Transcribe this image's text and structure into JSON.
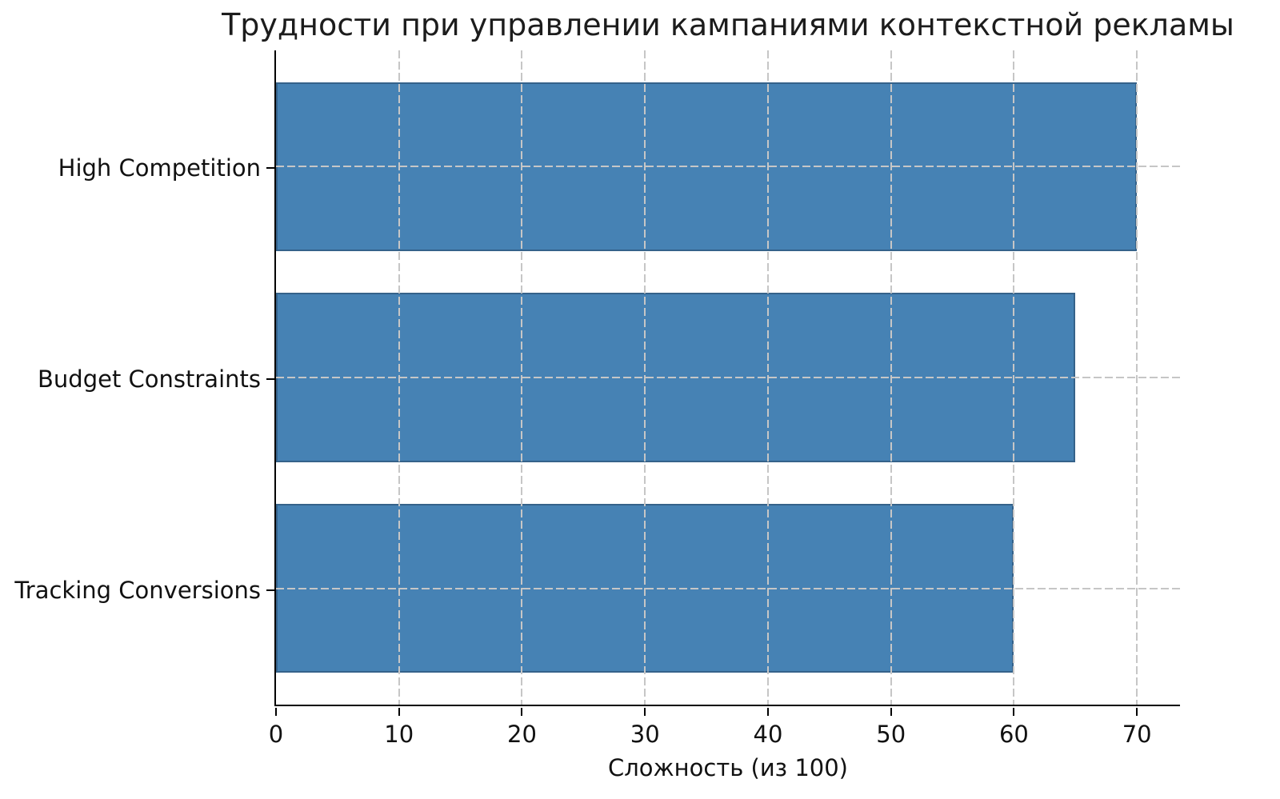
{
  "chart_data": {
    "type": "bar",
    "orientation": "horizontal",
    "title": "Трудности при управлении кампаниями контекстной рекламы",
    "xlabel": "Сложность (из 100)",
    "ylabel": "",
    "categories": [
      "High Competition",
      "Budget Constraints",
      "Tracking Conversions"
    ],
    "values": [
      70,
      65,
      60
    ],
    "xticks": [
      0,
      10,
      20,
      30,
      40,
      50,
      60,
      70
    ],
    "xlim": [
      0,
      73.5
    ],
    "grid": "dashed, drawn over bars, vertical at each x tick and horizontal at each category center",
    "legend": "none",
    "bar_color": "#4682b4",
    "bar_edge_color": "#35628a",
    "grid_color": "#c6c6c6",
    "axis_color": "#000000",
    "text_color": "#111111"
  }
}
